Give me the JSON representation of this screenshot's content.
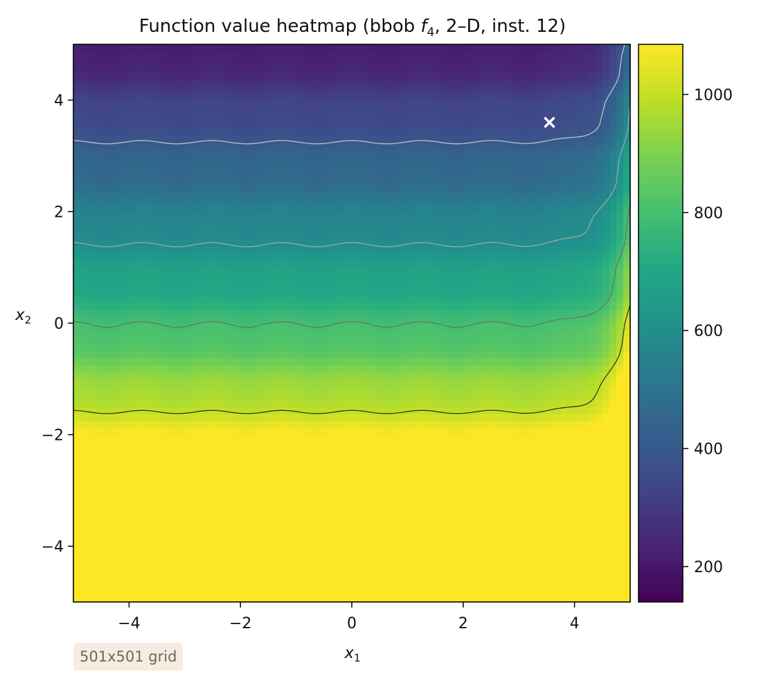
{
  "chart_data": {
    "type": "heatmap",
    "title_parts": {
      "before": "Function value heatmap (bbob ",
      "f": "f",
      "sub": "4",
      "after": ", 2–D, inst. 12)"
    },
    "xlabel": {
      "base": "x",
      "sub": "1"
    },
    "ylabel": {
      "base": "x",
      "sub": "2"
    },
    "xlim": [
      -5,
      5
    ],
    "ylim": [
      -5,
      5
    ],
    "xticks": [
      -4,
      -2,
      0,
      2,
      4
    ],
    "yticks": [
      -4,
      -2,
      0,
      2,
      4
    ],
    "xtick_labels": [
      "−4",
      "−2",
      "0",
      "2",
      "4"
    ],
    "ytick_labels": [
      "−4",
      "−2",
      "0",
      "2",
      "4"
    ],
    "colormap": "viridis",
    "color_range": [
      140,
      1085
    ],
    "colorbar_ticks": [
      200,
      400,
      600,
      800,
      1000
    ],
    "colorbar_labels": [
      "200",
      "400",
      "600",
      "800",
      "1000"
    ],
    "contour_levels": [
      200,
      400,
      600,
      800,
      1000
    ],
    "optimum_marker": {
      "x": 3.55,
      "y": 3.6,
      "symbol": "x",
      "color": "#ffffff"
    },
    "grid": false,
    "colors": {
      "viridis_low": "#440154",
      "viridis_mid": "#21918c",
      "viridis_high": "#fde725"
    }
  },
  "annotation": {
    "grid_size": "501x501 grid"
  }
}
